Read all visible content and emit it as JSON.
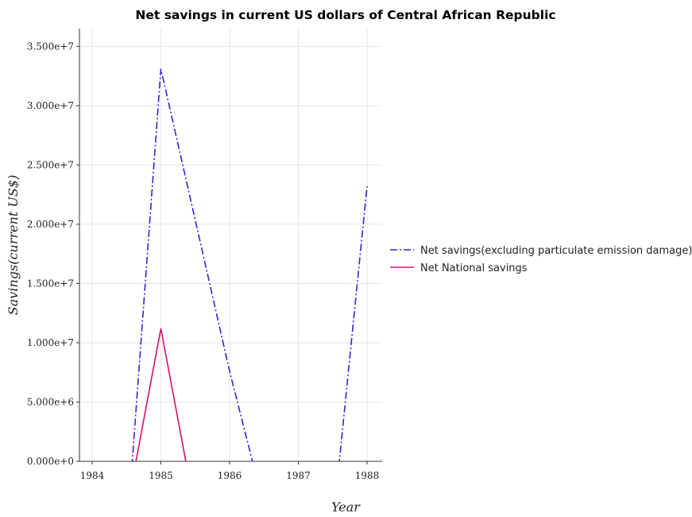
{
  "chart_data": {
    "type": "line",
    "title": "Net savings in current US dollars of Central African Republic",
    "xlabel": "Year",
    "ylabel": "Savings(current US$)",
    "categories": [
      "1984",
      "1985",
      "1986",
      "1987",
      "1988"
    ],
    "ylim": [
      0,
      36500000
    ],
    "yticks": [
      0,
      5000000,
      10000000,
      15000000,
      20000000,
      25000000,
      30000000,
      35000000
    ],
    "ytick_labels": [
      "0.000e+0",
      "5.000e+6",
      "1.000e+7",
      "1.500e+7",
      "2.000e+7",
      "2.500e+7",
      "3.000e+7",
      "3.500e+7"
    ],
    "grid": true,
    "legend_position": "right",
    "series": [
      {
        "name": "Net savings(excluding particulate emission damage)",
        "color": "#3a1fd6",
        "style": "dashdot",
        "values": [
          0,
          33100000,
          7600000,
          0,
          23200000
        ]
      },
      {
        "name": "Net National savings",
        "color": "#d4126b",
        "style": "solid",
        "values": [
          0,
          11200000,
          0,
          0,
          0
        ]
      }
    ]
  }
}
